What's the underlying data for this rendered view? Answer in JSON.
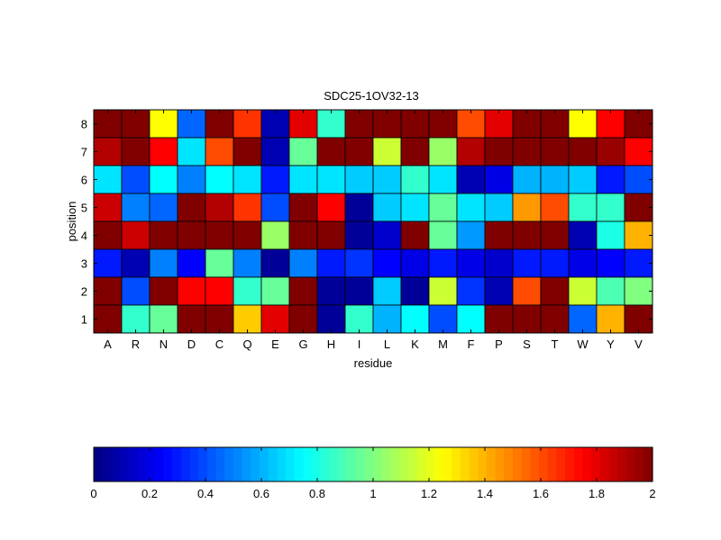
{
  "chart_data": {
    "type": "heatmap",
    "title": "SDC25-1OV32-13",
    "xlabel": "residue",
    "ylabel": "position",
    "x_categories": [
      "A",
      "R",
      "N",
      "D",
      "C",
      "Q",
      "E",
      "G",
      "H",
      "I",
      "L",
      "K",
      "M",
      "F",
      "P",
      "S",
      "T",
      "W",
      "Y",
      "V"
    ],
    "y_categories": [
      "8",
      "7",
      "6",
      "5",
      "4",
      "3",
      "2",
      "1"
    ],
    "values": [
      [
        2.0,
        2.0,
        1.25,
        0.45,
        2.0,
        1.65,
        0.1,
        1.8,
        0.85,
        2.0,
        2.0,
        2.0,
        2.0,
        1.6,
        1.8,
        2.0,
        2.0,
        1.25,
        1.75,
        2.0
      ],
      [
        1.9,
        2.0,
        1.75,
        0.7,
        1.6,
        2.0,
        0.1,
        0.95,
        2.0,
        2.0,
        1.15,
        2.0,
        1.05,
        1.9,
        2.0,
        2.0,
        2.0,
        2.0,
        1.95,
        1.75
      ],
      [
        0.7,
        0.4,
        0.75,
        0.5,
        0.75,
        0.7,
        0.3,
        0.7,
        0.7,
        0.65,
        0.65,
        0.85,
        0.7,
        0.1,
        0.2,
        0.6,
        0.6,
        0.65,
        0.3,
        0.4
      ],
      [
        1.85,
        0.5,
        0.45,
        2.0,
        1.9,
        1.65,
        0.4,
        2.0,
        1.75,
        0.05,
        0.65,
        0.7,
        0.95,
        0.7,
        0.65,
        1.45,
        1.6,
        0.85,
        0.85,
        2.0
      ],
      [
        2.0,
        1.85,
        2.0,
        2.0,
        2.0,
        2.0,
        1.05,
        2.0,
        2.0,
        0.05,
        0.15,
        2.0,
        0.95,
        0.55,
        2.0,
        2.0,
        2.0,
        0.1,
        0.8,
        1.4
      ],
      [
        0.3,
        0.1,
        0.5,
        0.25,
        0.95,
        0.5,
        0.05,
        0.5,
        0.3,
        0.35,
        0.25,
        0.2,
        0.3,
        0.2,
        0.15,
        0.3,
        0.3,
        0.2,
        0.25,
        0.3
      ],
      [
        2.0,
        0.4,
        2.0,
        1.75,
        1.75,
        0.85,
        0.95,
        2.0,
        0.05,
        0.05,
        0.65,
        0.05,
        1.15,
        0.35,
        0.1,
        1.6,
        2.0,
        1.15,
        0.9,
        1.0
      ],
      [
        2.0,
        0.85,
        0.95,
        2.0,
        2.0,
        1.35,
        1.8,
        2.0,
        0.05,
        0.85,
        0.6,
        0.75,
        0.4,
        0.75,
        2.0,
        2.0,
        2.0,
        0.45,
        1.4,
        2.0
      ]
    ],
    "zlim": [
      0,
      2
    ],
    "colormap": "jet",
    "colorbar": {
      "orientation": "horizontal",
      "placement": "bottom",
      "ticks": [
        "0",
        "0.2",
        "0.4",
        "0.6",
        "0.8",
        "1",
        "1.2",
        "1.4",
        "1.6",
        "1.8",
        "2"
      ]
    },
    "grid": false
  }
}
